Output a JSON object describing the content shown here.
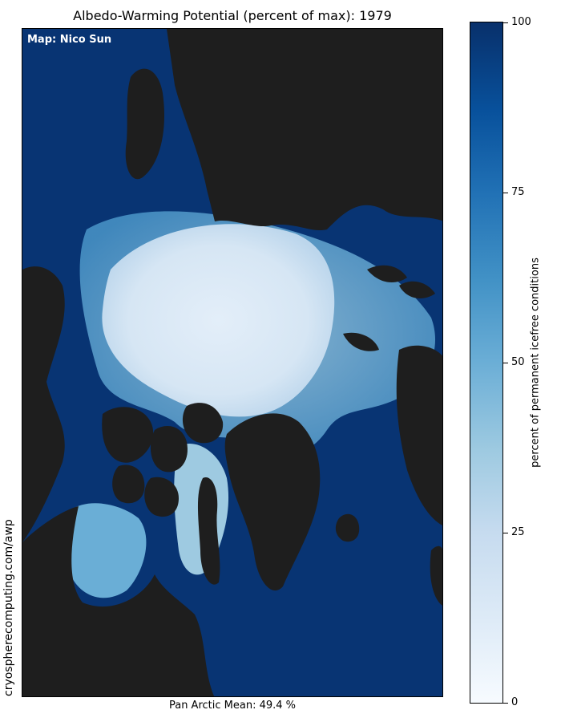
{
  "title": "Albedo-Warming Potential (percent of max): 1979",
  "credit": "Map: Nico Sun",
  "footer": "Pan Arctic Mean: 49.4 %",
  "side_url": "cryospherecomputing.com/awp",
  "colorbar": {
    "label": "percent of permanent icefree conditions",
    "ticks": [
      "0",
      "25",
      "50",
      "75",
      "100"
    ],
    "min": 0,
    "max": 100,
    "low_color": "#f7fbff",
    "high_color": "#08306b",
    "land_color": "#1e1e1e"
  }
}
